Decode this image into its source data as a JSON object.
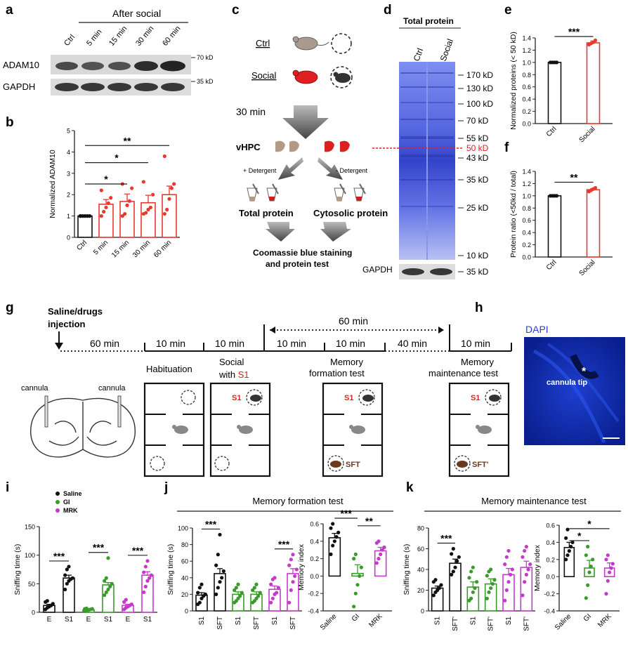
{
  "panels": {
    "a": "a",
    "b": "b",
    "c": "c",
    "d": "d",
    "e": "e",
    "f": "f",
    "g": "g",
    "h": "h",
    "i": "i",
    "j": "j",
    "k": "k"
  },
  "panel_a": {
    "after_social": "After social",
    "lanes": [
      "Ctrl",
      "5 min",
      "15 min",
      "30 min",
      "60 min"
    ],
    "rows": [
      "ADAM10",
      "GAPDH"
    ],
    "markers": [
      "70 kD",
      "35 kD"
    ]
  },
  "panel_c": {
    "ctrl": "Ctrl",
    "social": "Social",
    "time": "30 min",
    "vhpc": "vHPC",
    "plus_det": "+ Detergent",
    "minus_det": "- Detergent",
    "total": "Total protein",
    "cyto": "Cytosolic protein",
    "final_1": "Coomassie blue staining",
    "final_2": "and protein test"
  },
  "panel_d": {
    "title": "Total protein",
    "lanes": [
      "Ctrl",
      "Social"
    ],
    "markers": [
      "170 kD",
      "130 kD",
      "100 kD",
      "70 kD",
      "55 kD",
      "50 kD",
      "43 kD",
      "35 kD",
      "25 kD",
      "10 kD"
    ],
    "gapdh": "GAPDH",
    "gapdh_marker": "35 kD"
  },
  "panel_g": {
    "injection_1": "Saline/drugs",
    "injection_2": "injection",
    "t60": "60 min",
    "t10a": "10 min",
    "t10b": "10 min",
    "t60b": "60 min",
    "t10c": "10 min",
    "t10d": "10 min",
    "t40": "40 min",
    "t10e": "10 min",
    "habituation": "Habituation",
    "social_1": "Social",
    "social_2": "with",
    "s1": "S1",
    "mem_form_1": "Memory",
    "mem_form_2": "formation test",
    "mem_main_1": "Memory",
    "mem_main_2": "maintenance test",
    "cannula_l": "cannula",
    "cannula_r": "cannula",
    "sft": "SFT",
    "sft2": "SFT'"
  },
  "panel_h": {
    "dapi": "DAPI",
    "tip": "cannula tip",
    "star": "*"
  },
  "colors": {
    "black": "#111111",
    "red": "#e8392f",
    "green": "#3a9a2a",
    "magenta": "#c33bc9",
    "coomassie": "#5566dd"
  },
  "chart_data": [
    {
      "id": "b",
      "type": "bar",
      "ylabel": "Normalized ADAM10",
      "categories": [
        "Ctrl",
        "5 min",
        "15 min",
        "30 min",
        "60 min"
      ],
      "values": [
        1.0,
        1.55,
        1.68,
        1.62,
        2.0
      ],
      "errors": [
        0.03,
        0.22,
        0.35,
        0.35,
        0.4
      ],
      "points": [
        [
          1.0,
          1.0,
          1.0,
          1.0,
          1.0,
          1.0
        ],
        [
          1.0,
          1.2,
          1.4,
          1.6,
          1.85,
          2.2
        ],
        [
          1.0,
          1.1,
          1.5,
          1.7,
          2.3,
          2.5
        ],
        [
          1.1,
          1.15,
          1.3,
          1.4,
          2.0,
          2.6
        ],
        [
          1.1,
          1.3,
          1.8,
          2.3,
          2.5,
          3.8
        ]
      ],
      "ylim": [
        0,
        5
      ],
      "yticks": [
        0,
        1,
        2,
        3,
        4,
        5
      ],
      "sig": [
        "*",
        "*",
        "**"
      ]
    },
    {
      "id": "e",
      "type": "bar",
      "ylabel": "Normalized proteins (< 50 kD)",
      "categories": [
        "Ctrl",
        "Social"
      ],
      "values": [
        1.0,
        1.32
      ],
      "errors": [
        0.0,
        0.03
      ],
      "points": [
        [
          1.0,
          1.0,
          1.0,
          1.0
        ],
        [
          1.29,
          1.31,
          1.33,
          1.36
        ]
      ],
      "ylim": [
        0,
        1.4
      ],
      "yticks": [
        0.0,
        0.2,
        0.4,
        0.6,
        0.8,
        1.0,
        1.2,
        1.4
      ],
      "sig": [
        "***"
      ]
    },
    {
      "id": "f",
      "type": "bar",
      "ylabel": "Protein ratio (<50kd / total)",
      "categories": [
        "Ctrl",
        "Social"
      ],
      "values": [
        1.0,
        1.1
      ],
      "errors": [
        0.0,
        0.02
      ],
      "points": [
        [
          1.0,
          1.0,
          1.0,
          1.0
        ],
        [
          1.07,
          1.09,
          1.11,
          1.13
        ]
      ],
      "ylim": [
        0,
        1.4
      ],
      "yticks": [
        0.0,
        0.2,
        0.4,
        0.6,
        0.8,
        1.0,
        1.2,
        1.4
      ],
      "sig": [
        "**"
      ]
    },
    {
      "id": "i",
      "type": "bar",
      "ylabel": "Sniffing time (s)",
      "categories": [
        "E",
        "S1",
        "E",
        "S1",
        "E",
        "S1"
      ],
      "groups": [
        "Saline",
        "GI",
        "MRK"
      ],
      "values": [
        12,
        60,
        4,
        48,
        12,
        65
      ],
      "errors": [
        2,
        5,
        1,
        4,
        2,
        6
      ],
      "points": [
        [
          5,
          8,
          10,
          12,
          15,
          18,
          20
        ],
        [
          40,
          50,
          55,
          58,
          60,
          65,
          75,
          80
        ],
        [
          2,
          3,
          4,
          5,
          6,
          6,
          7
        ],
        [
          30,
          35,
          40,
          45,
          50,
          55,
          60,
          95
        ],
        [
          5,
          8,
          10,
          12,
          14,
          18,
          22
        ],
        [
          35,
          45,
          55,
          60,
          65,
          70,
          80,
          90
        ]
      ],
      "ylim": [
        0,
        150
      ],
      "yticks": [
        0,
        50,
        100,
        150
      ],
      "sig": [
        "***",
        "***",
        "***"
      ],
      "legend": [
        "Saline",
        "GI",
        "MRK"
      ]
    },
    {
      "id": "j1",
      "type": "bar",
      "title": "Memory formation test",
      "ylabel": "Sniffing time (s)",
      "categories": [
        "S1",
        "SFT",
        "S1",
        "SFT",
        "S1",
        "SFT"
      ],
      "values": [
        19,
        45,
        20,
        20,
        26,
        45
      ],
      "errors": [
        3,
        6,
        3,
        3,
        4,
        6
      ],
      "points": [
        [
          8,
          10,
          15,
          18,
          20,
          22,
          28,
          32
        ],
        [
          20,
          28,
          35,
          40,
          48,
          55,
          68,
          92
        ],
        [
          10,
          12,
          15,
          18,
          22,
          25,
          28,
          32
        ],
        [
          10,
          12,
          15,
          18,
          22,
          25,
          28,
          32
        ],
        [
          10,
          15,
          20,
          22,
          28,
          32,
          38,
          40
        ],
        [
          10,
          25,
          35,
          42,
          50,
          55,
          62,
          68
        ]
      ],
      "ylim": [
        0,
        100
      ],
      "yticks": [
        0,
        20,
        40,
        60,
        80,
        100
      ],
      "sig": [
        "***",
        "***"
      ]
    },
    {
      "id": "j2",
      "type": "bar",
      "ylabel": "Memory index",
      "categories": [
        "Saline",
        "GI",
        "MRK"
      ],
      "values": [
        0.44,
        0.03,
        0.29
      ],
      "errors": [
        0.05,
        0.1,
        0.04
      ],
      "points": [
        [
          0.25,
          0.35,
          0.4,
          0.45,
          0.5,
          0.55,
          0.6
        ],
        [
          -0.35,
          -0.2,
          -0.1,
          0.0,
          0.1,
          0.2,
          0.25
        ],
        [
          0.15,
          0.2,
          0.25,
          0.3,
          0.33,
          0.38,
          0.4
        ]
      ],
      "ylim": [
        -0.4,
        0.6
      ],
      "yticks": [
        -0.4,
        -0.2,
        0.0,
        0.2,
        0.4,
        0.6
      ],
      "sig": [
        "***",
        "**"
      ]
    },
    {
      "id": "k1",
      "type": "bar",
      "title": "Memory maintenance test",
      "ylabel": "Sniffing time (s)",
      "categories": [
        "S1",
        "SFT'",
        "S1",
        "SFT'",
        "S1",
        "SFT'"
      ],
      "values": [
        22,
        46,
        23,
        26,
        35,
        42
      ],
      "errors": [
        2,
        4,
        5,
        5,
        6,
        6
      ],
      "points": [
        [
          15,
          18,
          20,
          22,
          25,
          28,
          30
        ],
        [
          35,
          38,
          42,
          48,
          52,
          55,
          60
        ],
        [
          10,
          12,
          18,
          22,
          28,
          32,
          38,
          42
        ],
        [
          12,
          18,
          22,
          26,
          30,
          34,
          38,
          40
        ],
        [
          10,
          20,
          28,
          35,
          40,
          45,
          52,
          58
        ],
        [
          15,
          28,
          35,
          40,
          45,
          52,
          58,
          62
        ]
      ],
      "ylim": [
        0,
        80
      ],
      "yticks": [
        0,
        20,
        40,
        60,
        80
      ],
      "sig": [
        "***"
      ]
    },
    {
      "id": "k2",
      "type": "bar",
      "ylabel": "Memory index",
      "categories": [
        "Saline",
        "GI",
        "MRK"
      ],
      "values": [
        0.34,
        0.1,
        0.1
      ],
      "errors": [
        0.06,
        0.09,
        0.06
      ],
      "points": [
        [
          0.2,
          0.25,
          0.3,
          0.35,
          0.4,
          0.45,
          0.55
        ],
        [
          -0.25,
          -0.1,
          0.05,
          0.12,
          0.2,
          0.25,
          0.35
        ],
        [
          -0.2,
          -0.05,
          0.05,
          0.1,
          0.15,
          0.2,
          0.25
        ]
      ],
      "ylim": [
        -0.4,
        0.6
      ],
      "yticks": [
        -0.4,
        -0.2,
        0.0,
        0.2,
        0.4,
        0.6
      ],
      "sig": [
        "*",
        "*"
      ]
    }
  ]
}
